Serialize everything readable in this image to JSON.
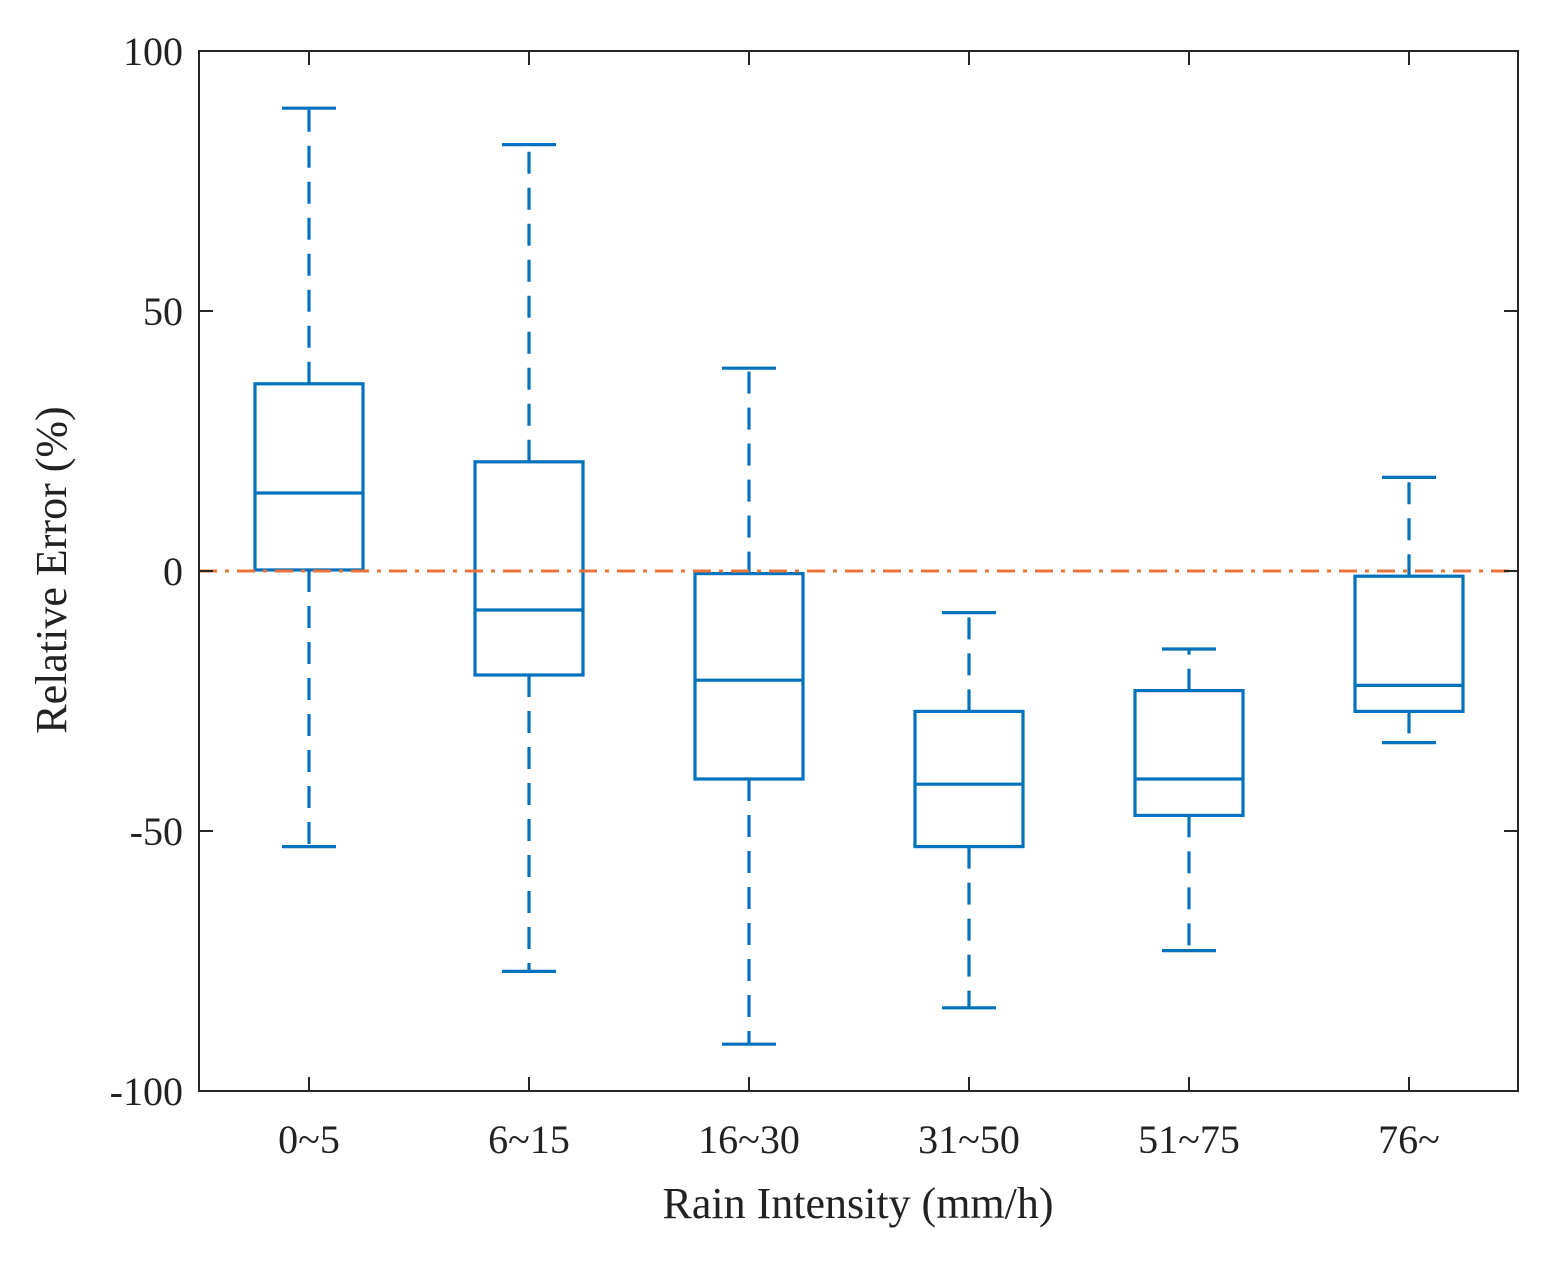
{
  "chart_data": {
    "type": "box",
    "title": "",
    "xlabel": "Rain Intensity (mm/h)",
    "ylabel": "Relative Error (%)",
    "ylim": [
      -100,
      100
    ],
    "yticks": [
      -100,
      -50,
      0,
      50,
      100
    ],
    "ytick_labels": [
      "-100",
      "-50",
      "0",
      "50",
      "100"
    ],
    "categories": [
      "0~5",
      "6~15",
      "16~30",
      "31~50",
      "51~75",
      "76~"
    ],
    "boxes": [
      {
        "category": "0~5",
        "whisker_low": -53,
        "q1": 0.2,
        "median": 15,
        "q3": 36,
        "whisker_high": 89
      },
      {
        "category": "6~15",
        "whisker_low": -77,
        "q1": -20,
        "median": -7.5,
        "q3": 21,
        "whisker_high": 82
      },
      {
        "category": "16~30",
        "whisker_low": -91,
        "q1": -40,
        "median": -21,
        "q3": -0.5,
        "whisker_high": 39
      },
      {
        "category": "31~50",
        "whisker_low": -84,
        "q1": -53,
        "median": -41,
        "q3": -27,
        "whisker_high": -8
      },
      {
        "category": "51~75",
        "whisker_low": -73,
        "q1": -47,
        "median": -40,
        "q3": -23,
        "whisker_high": -15
      },
      {
        "category": "76~",
        "whisker_low": -33,
        "q1": -27,
        "median": -22,
        "q3": -1,
        "whisker_high": 18
      }
    ],
    "reference_line": {
      "y": 0,
      "style": "dash-dot"
    },
    "grid": false,
    "colors": {
      "box": "#0072BD",
      "reference": "#E8743B",
      "axis": "#262626"
    }
  }
}
